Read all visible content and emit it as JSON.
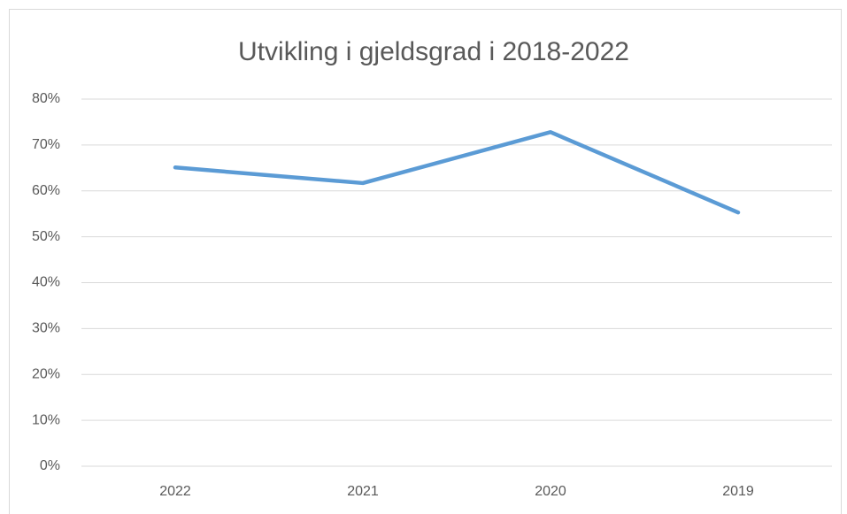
{
  "chart_data": {
    "type": "line",
    "title": "Utvikling i gjeldsgrad i 2018-2022",
    "categories": [
      "2022",
      "2021",
      "2020",
      "2019"
    ],
    "values": [
      65.1,
      61.7,
      72.8,
      55.3
    ],
    "color": "#5b9bd5",
    "ylim": [
      0,
      80
    ],
    "yticks": [
      {
        "value": 0,
        "label": "0%"
      },
      {
        "value": 10,
        "label": "10%"
      },
      {
        "value": 20,
        "label": "20%"
      },
      {
        "value": 30,
        "label": "30%"
      },
      {
        "value": 40,
        "label": "40%"
      },
      {
        "value": 50,
        "label": "50%"
      },
      {
        "value": 60,
        "label": "60%"
      },
      {
        "value": 70,
        "label": "70%"
      },
      {
        "value": 80,
        "label": "80%"
      }
    ],
    "grid": true
  }
}
